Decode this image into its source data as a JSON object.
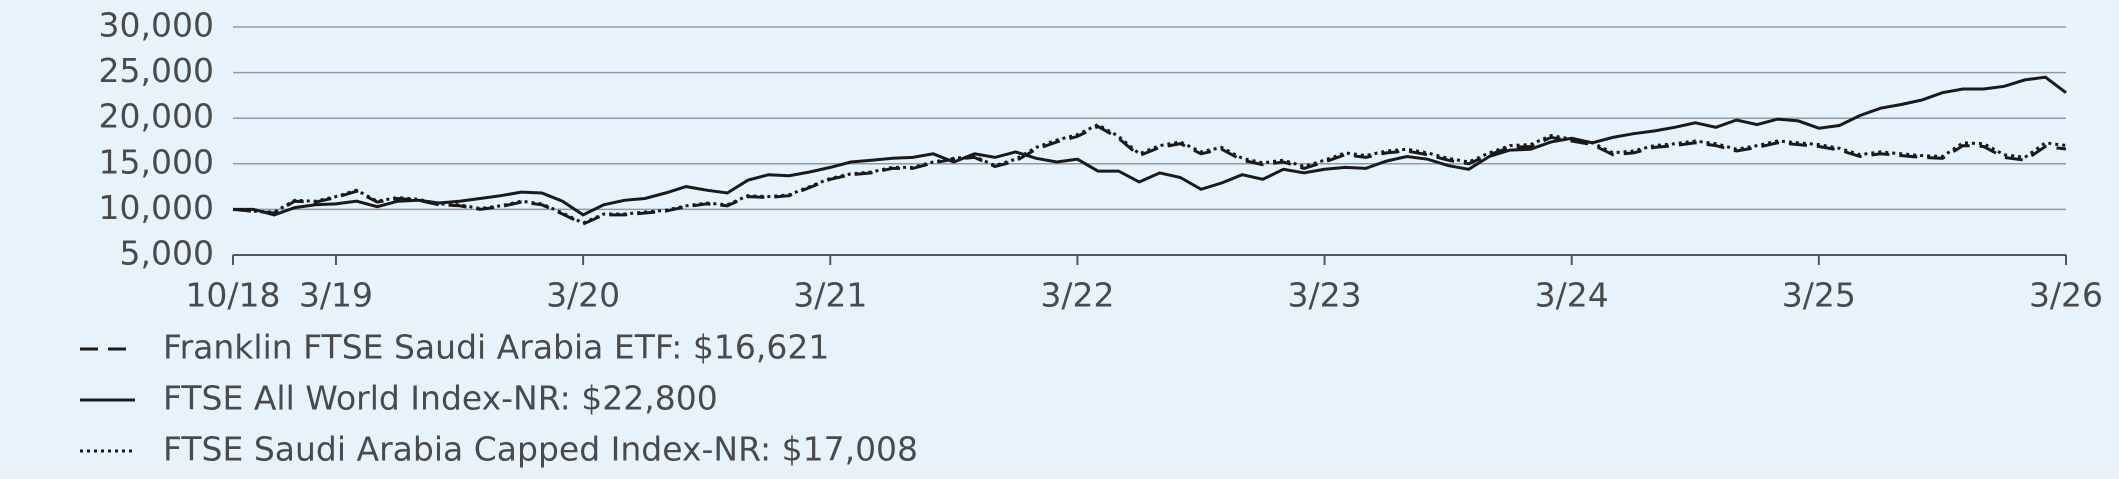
{
  "chart_data": {
    "type": "line",
    "categories": [
      "10/18",
      null,
      null,
      null,
      null,
      "3/19",
      null,
      null,
      null,
      null,
      null,
      null,
      null,
      null,
      null,
      null,
      null,
      "3/20",
      null,
      null,
      null,
      null,
      null,
      null,
      null,
      null,
      null,
      null,
      null,
      "3/21",
      null,
      null,
      null,
      null,
      null,
      null,
      null,
      null,
      null,
      null,
      null,
      "3/22",
      null,
      null,
      null,
      null,
      null,
      null,
      null,
      null,
      null,
      null,
      null,
      "3/23",
      null,
      null,
      null,
      null,
      null,
      null,
      null,
      null,
      null,
      null,
      null,
      "3/24",
      null,
      null,
      null,
      null,
      null,
      null,
      null,
      null,
      null,
      null,
      null,
      "3/25",
      null,
      null,
      null,
      null,
      null,
      null,
      null,
      null,
      null,
      null,
      null,
      "3/26"
    ],
    "series": [
      {
        "name": "Franklin FTSE Saudi Arabia ETF: $16,621",
        "color": "#1a1a1a",
        "dash": "dashed",
        "values": [
          10000,
          9800,
          9600,
          10900,
          10800,
          11300,
          12000,
          10800,
          11200,
          11000,
          10500,
          10400,
          10000,
          10300,
          10800,
          10500,
          9500,
          8400,
          9400,
          9400,
          9600,
          9800,
          10300,
          10600,
          10400,
          11400,
          11300,
          11500,
          12400,
          13300,
          13800,
          14000,
          14500,
          14500,
          15100,
          15500,
          15700,
          14700,
          15300,
          16600,
          17400,
          18000,
          19100,
          17800,
          15900,
          16800,
          17200,
          16100,
          16600,
          15400,
          14900,
          15200,
          14500,
          15200,
          16000,
          15700,
          16200,
          16400,
          16000,
          15400,
          15000,
          16000,
          16800,
          16900,
          17900,
          17500,
          17100,
          16000,
          16200,
          16800,
          17000,
          17300,
          17000,
          16400,
          16800,
          17300,
          17100,
          16900,
          16500,
          15800,
          16100,
          15900,
          15700,
          15600,
          17000,
          16900,
          15700,
          15400,
          16900,
          16621
        ]
      },
      {
        "name": "FTSE All World Index-NR: $22,800",
        "color": "#1a1a1a",
        "dash": "solid",
        "values": [
          10000,
          10000,
          9400,
          10200,
          10500,
          10600,
          10900,
          10300,
          10900,
          11000,
          10700,
          10900,
          11200,
          11500,
          11900,
          11800,
          10900,
          9400,
          10500,
          11000,
          11200,
          11800,
          12500,
          12100,
          11800,
          13200,
          13800,
          13700,
          14100,
          14600,
          15200,
          15400,
          15600,
          15700,
          16100,
          15200,
          16100,
          15700,
          16300,
          15600,
          15200,
          15500,
          14200,
          14200,
          13000,
          14000,
          13500,
          12200,
          12900,
          13800,
          13300,
          14400,
          14000,
          14400,
          14600,
          14500,
          15300,
          15800,
          15500,
          14800,
          14400,
          15800,
          16500,
          16600,
          17400,
          17800,
          17300,
          17900,
          18300,
          18600,
          19000,
          19500,
          19000,
          19800,
          19300,
          19900,
          19700,
          18900,
          19200,
          20300,
          21100,
          21500,
          22000,
          22800,
          23200,
          23200,
          23500,
          24200,
          24500,
          22800
        ]
      },
      {
        "name": "FTSE Saudi Arabia Capped Index-NR: $17,008",
        "color": "#1a1a1a",
        "dash": "dotted",
        "values": [
          10000,
          9800,
          9700,
          11000,
          10900,
          11400,
          12100,
          10900,
          11300,
          11100,
          10600,
          10500,
          10100,
          10400,
          10900,
          10600,
          9600,
          8500,
          9500,
          9500,
          9700,
          9900,
          10400,
          10700,
          10500,
          11500,
          11400,
          11600,
          12500,
          13400,
          13900,
          14100,
          14600,
          14600,
          15200,
          15600,
          15800,
          14800,
          15500,
          16800,
          17600,
          18200,
          19300,
          18000,
          16100,
          17000,
          17400,
          16300,
          16800,
          15600,
          15100,
          15400,
          14700,
          15400,
          16200,
          15900,
          16400,
          16600,
          16200,
          15600,
          15200,
          16200,
          17000,
          17100,
          18100,
          17700,
          17300,
          16200,
          16400,
          17000,
          17200,
          17500,
          17200,
          16600,
          17000,
          17500,
          17300,
          17100,
          16700,
          16000,
          16300,
          16100,
          15900,
          15800,
          17300,
          17200,
          16000,
          15700,
          17300,
          17008
        ]
      }
    ],
    "ylim": [
      5000,
      30000
    ],
    "yticks": [
      {
        "value": 5000,
        "label": "5,000"
      },
      {
        "value": 10000,
        "label": "10,000"
      },
      {
        "value": 15000,
        "label": "15,000"
      },
      {
        "value": 20000,
        "label": "20,000"
      },
      {
        "value": 25000,
        "label": "25,000"
      },
      {
        "value": 30000,
        "label": "30,000"
      }
    ],
    "grid": true
  }
}
